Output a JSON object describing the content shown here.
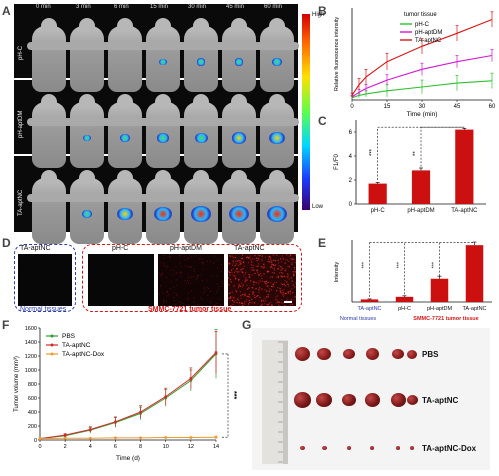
{
  "panels": {
    "A": "A",
    "B": "B",
    "C": "C",
    "D": "D",
    "E": "E",
    "F": "F",
    "G": "G"
  },
  "panel_a": {
    "time_labels": [
      "0 min",
      "3 min",
      "6 min",
      "15 min",
      "30 min",
      "45 min",
      "60 min"
    ],
    "row_labels": [
      "pH-C",
      "pH-aptDM",
      "TA-aptNC"
    ],
    "colorbar_high": "High",
    "colorbar_low": "Low"
  },
  "chart_data": [
    {
      "panel": "B",
      "type": "line",
      "title": "",
      "xlabel": "Time (min)",
      "ylabel": "Relative fluorescence intensity",
      "xlim": [
        0,
        60
      ],
      "ylim": [
        0,
        12
      ],
      "x_ticks": [
        "0",
        "15",
        "30",
        "45",
        "60"
      ],
      "legend_title": "tumor tissue",
      "legend_placement": "top-right",
      "series": [
        {
          "name": "pH-C",
          "color": "#2dc22d",
          "x": [
            0,
            3,
            6,
            15,
            30,
            45,
            60
          ],
          "y": [
            0.3,
            0.6,
            0.8,
            1.2,
            1.7,
            2.2,
            2.5
          ],
          "err": [
            0.2,
            0.3,
            0.4,
            0.8,
            0.9,
            1.0,
            1.0
          ]
        },
        {
          "name": "pH-aptDM",
          "color": "#d21ad2",
          "x": [
            0,
            3,
            6,
            15,
            30,
            45,
            60
          ],
          "y": [
            0.4,
            1.0,
            1.5,
            2.6,
            4.0,
            5.0,
            5.8
          ],
          "err": [
            0.2,
            0.4,
            0.5,
            0.7,
            0.8,
            0.8,
            0.8
          ]
        },
        {
          "name": "TA-aptNC",
          "color": "#d41818",
          "x": [
            0,
            3,
            6,
            15,
            30,
            45,
            60
          ],
          "y": [
            0.6,
            2.0,
            3.0,
            5.0,
            7.0,
            8.7,
            10.5
          ],
          "err": [
            0.3,
            0.8,
            1.0,
            1.1,
            1.0,
            1.0,
            1.0
          ]
        }
      ]
    },
    {
      "panel": "C",
      "type": "bar",
      "title": "",
      "ylabel": "F1/F0",
      "ylim": [
        0,
        7
      ],
      "y_ticks": [
        "0",
        "2",
        "4",
        "6"
      ],
      "categories": [
        "pH-C",
        "pH-aptDM",
        "TA-aptNC"
      ],
      "values": [
        1.7,
        2.8,
        6.2
      ],
      "errors": [
        0.1,
        0.2,
        0.1
      ],
      "significance": [
        "***",
        "**"
      ],
      "bar_color": "#cc1010"
    },
    {
      "panel": "E",
      "type": "bar",
      "title": "",
      "ylabel": "Intensity",
      "categories": [
        "TA-aptNC",
        "pH-C",
        "pH-aptDM",
        "TA-aptNC"
      ],
      "values": [
        0.5,
        1.0,
        4.5,
        11.0
      ],
      "errors": [
        0.1,
        0.2,
        0.5,
        0.6
      ],
      "significance": [
        "***",
        "***",
        "***"
      ],
      "bar_color": "#cc1010",
      "group_labels": {
        "normal": "Normal tissues",
        "tumor": "SMMC-7721 tumor tissue"
      }
    },
    {
      "panel": "F",
      "type": "line",
      "title": "",
      "xlabel": "Time (d)",
      "ylabel": "Tumor volume (mm³)",
      "xlim": [
        0,
        14
      ],
      "ylim": [
        0,
        1600
      ],
      "x_ticks": [
        "0",
        "2",
        "4",
        "6",
        "8",
        "10",
        "12",
        "14"
      ],
      "y_ticks": [
        "0",
        "200",
        "400",
        "600",
        "800",
        "1000",
        "1200",
        "1400",
        "1600"
      ],
      "legend_placement": "top-left",
      "significance": "***",
      "series": [
        {
          "name": "PBS",
          "color": "#2e9e2e",
          "x": [
            0,
            2,
            4,
            6,
            8,
            10,
            12,
            14
          ],
          "y": [
            20,
            60,
            140,
            250,
            380,
            600,
            850,
            1230
          ],
          "err": [
            10,
            20,
            40,
            70,
            90,
            120,
            150,
            350
          ]
        },
        {
          "name": "TA-aptNC",
          "color": "#d42a2a",
          "x": [
            0,
            2,
            4,
            6,
            8,
            10,
            12,
            14
          ],
          "y": [
            20,
            70,
            150,
            260,
            400,
            620,
            880,
            1250
          ],
          "err": [
            10,
            20,
            40,
            70,
            90,
            120,
            150,
            300
          ]
        },
        {
          "name": "TA-aptNC-Dox",
          "color": "#ee9a30",
          "x": [
            0,
            2,
            4,
            6,
            8,
            10,
            12,
            14
          ],
          "y": [
            20,
            25,
            25,
            30,
            30,
            35,
            35,
            40
          ],
          "err": [
            5,
            8,
            8,
            10,
            10,
            10,
            10,
            15
          ]
        }
      ]
    }
  ],
  "panel_d": {
    "labels": [
      "TA-aptNC",
      "pH-C",
      "pH-aptDM",
      "TA-aptNC"
    ],
    "normal_label": "Normal tissues",
    "tumor_label": "SMMC-7721 tumor tissue"
  },
  "panel_g": {
    "rows": [
      "PBS",
      "TA-aptNC",
      "TA-aptNC-Dox"
    ]
  },
  "colors": {
    "normal": "#2a3aa8",
    "tumor": "#d41818"
  }
}
